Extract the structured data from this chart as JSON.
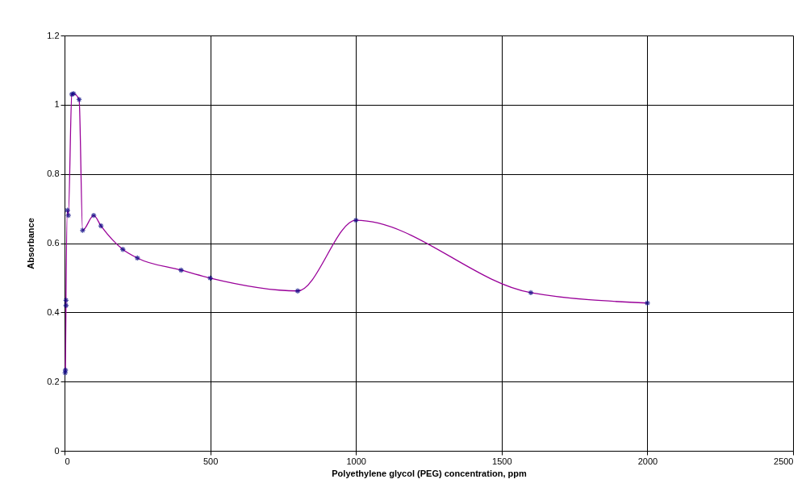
{
  "chart_data": {
    "type": "line",
    "xlabel": "Polyethylene glycol (PEG) concentration, ppm",
    "ylabel": "Absorbance",
    "x": [
      2,
      3,
      5,
      5,
      10,
      13,
      25,
      31,
      50,
      62,
      100,
      125,
      200,
      250,
      400,
      500,
      800,
      1000,
      1600,
      2000
    ],
    "series": [
      {
        "color": "#990099",
        "marker": "none",
        "values": [
          0.225,
          0.233,
          0.42,
          0.435,
          0.695,
          0.68,
          1.03,
          1.032,
          1.015,
          0.637,
          0.68,
          0.65,
          0.582,
          0.557,
          0.522,
          0.499,
          0.462,
          0.666,
          0.457,
          0.427
        ]
      },
      {
        "type": "scatter",
        "color": "#000080",
        "marker": "cross",
        "values": [
          0.225,
          0.233,
          0.42,
          0.435,
          0.695,
          0.68,
          1.03,
          1.032,
          1.015,
          0.637,
          0.68,
          0.65,
          0.582,
          0.557,
          0.522,
          0.499,
          0.462,
          0.666,
          0.457,
          0.427
        ]
      }
    ],
    "xlim": [
      0,
      2500
    ],
    "xticks": [
      0,
      500,
      1000,
      1500,
      2000,
      2500
    ],
    "ylim": [
      0,
      1.2
    ],
    "yticks": [
      0,
      0.2,
      0.4,
      0.6,
      0.8,
      1,
      1.2
    ],
    "grid": true
  }
}
